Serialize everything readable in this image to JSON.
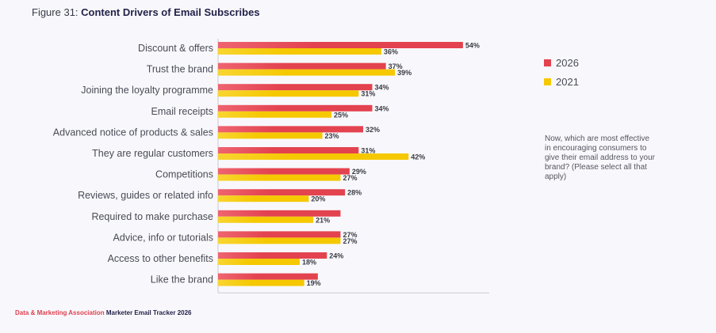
{
  "title_prefix": "Figure 31: ",
  "title_main": "Content Drivers of Email Subscribes",
  "legend": [
    {
      "label": "2026",
      "color": "#e3424f"
    },
    {
      "label": "2021",
      "color": "#f5c800"
    }
  ],
  "note": "Now, which are most effective in encouraging consumers to give their email address to your brand? (Please select all that apply)",
  "footer": {
    "org": "Data & Marketing Association",
    "report": "Marketer Email Tracker 2026"
  },
  "chart_data": {
    "type": "bar",
    "orientation": "horizontal",
    "title": "Content Drivers of Email Subscribes",
    "categories": [
      "Discount & offers",
      "Trust the brand",
      "Joining the loyalty programme",
      "Email receipts",
      "Advanced notice of products & sales",
      "They are regular customers",
      "Competitions",
      "Reviews, guides or related info",
      "Required to make purchase",
      "Advice, info or tutorials",
      "Access to other benefits",
      "Like the brand"
    ],
    "series": [
      {
        "name": "2026",
        "color": "#e3424f",
        "values": [
          54,
          37,
          34,
          34,
          32,
          31,
          29,
          28,
          27,
          27,
          24,
          22
        ],
        "labels": [
          "54%",
          "37%",
          "34%",
          "34%",
          "32%",
          "31%",
          "29%",
          "28%",
          "",
          "27%",
          "24%",
          ""
        ]
      },
      {
        "name": "2021",
        "color": "#f5c800",
        "values": [
          36,
          39,
          31,
          25,
          23,
          42,
          27,
          20,
          21,
          27,
          18,
          19
        ],
        "labels": [
          "36%",
          "39%",
          "31%",
          "25%",
          "23%",
          "42%",
          "27%",
          "20%",
          "21%",
          "27%",
          "18%",
          "19%"
        ]
      }
    ],
    "xlim": [
      0,
      60
    ],
    "legend_position": "right",
    "grid": false
  }
}
